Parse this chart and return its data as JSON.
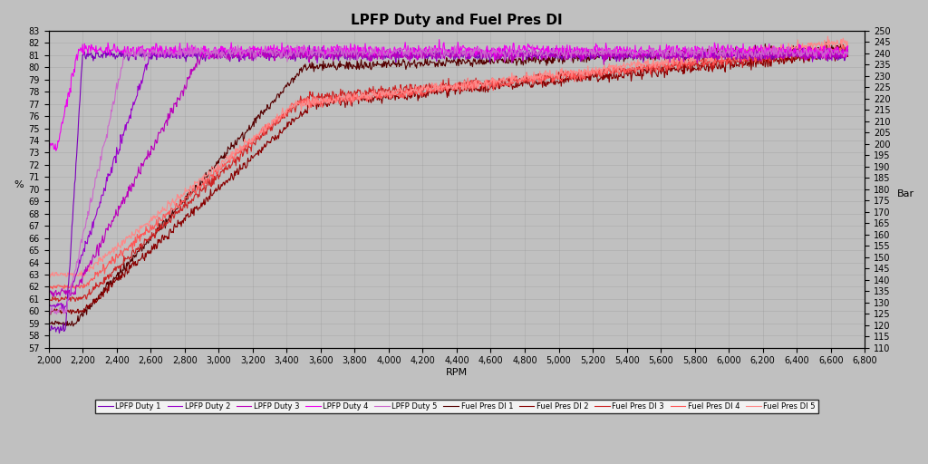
{
  "title": "LPFP Duty and Fuel Pres DI",
  "xlabel": "RPM",
  "ylabel_left": "%",
  "ylabel_right": "Bar",
  "ylim_left": [
    57,
    83
  ],
  "ylim_right": [
    110,
    250
  ],
  "xlim": [
    2000,
    6800
  ],
  "xticks": [
    2000,
    2200,
    2400,
    2600,
    2800,
    3000,
    3200,
    3400,
    3600,
    3800,
    4000,
    4200,
    4400,
    4600,
    4800,
    5000,
    5200,
    5400,
    5600,
    5800,
    6000,
    6200,
    6400,
    6600,
    6800
  ],
  "background_color": "#c0c0c0",
  "lpfp_colors": [
    "#7B00BB",
    "#9900CC",
    "#BB00BB",
    "#EE00EE",
    "#CC66CC"
  ],
  "fuel_colors": [
    "#550000",
    "#880000",
    "#CC2222",
    "#FF5555",
    "#FF8888"
  ],
  "legend_entries": [
    "LPFP Duty 1",
    "LPFP Duty 2",
    "LPFP Duty 3",
    "LPFP Duty 4",
    "LPFP Duty 5",
    "Fuel Pres DI 1",
    "Fuel Pres DI 2",
    "Fuel Pres DI 3",
    "Fuel Pres DI 4",
    "Fuel Pres DI 5"
  ],
  "title_fontsize": 11,
  "tick_fontsize": 7,
  "label_fontsize": 8,
  "legend_fontsize": 6
}
